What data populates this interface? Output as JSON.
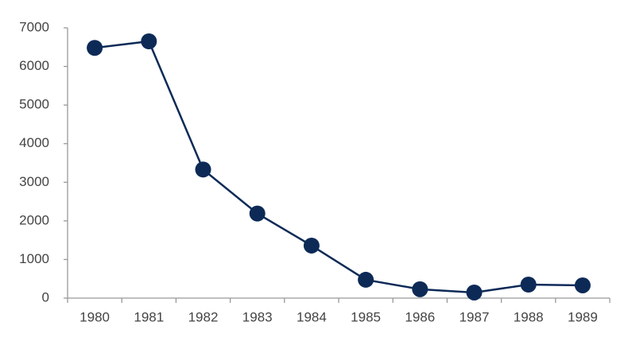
{
  "chart_data": {
    "type": "line",
    "categories": [
      "1980",
      "1981",
      "1982",
      "1983",
      "1984",
      "1985",
      "1986",
      "1987",
      "1988",
      "1989"
    ],
    "values": [
      6480,
      6650,
      3330,
      2190,
      1360,
      475,
      230,
      145,
      350,
      330
    ],
    "color": "#0d2a57",
    "ylim": [
      0,
      7000
    ],
    "yticks": [
      0,
      1000,
      2000,
      3000,
      4000,
      5000,
      6000,
      7000
    ],
    "grid": false
  }
}
